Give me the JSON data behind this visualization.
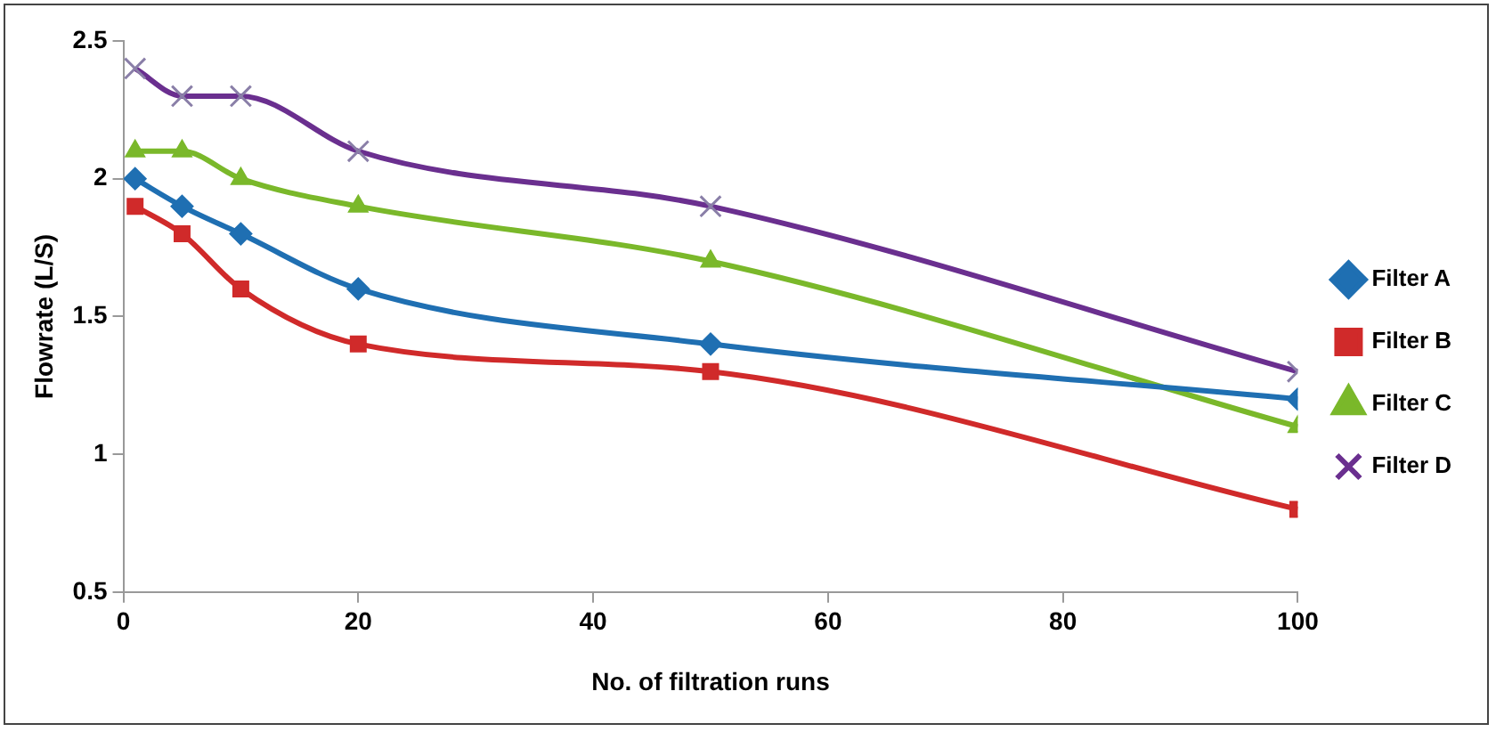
{
  "chart_data": {
    "type": "line",
    "xlabel": "No. of filtration runs",
    "ylabel": "Flowrate (L/S)",
    "x": [
      1,
      5,
      10,
      20,
      50,
      100
    ],
    "series": [
      {
        "name": "Filter A",
        "color": "#1f6fb2",
        "marker": "diamond",
        "values": [
          2.0,
          1.9,
          1.8,
          1.6,
          1.4,
          1.2
        ]
      },
      {
        "name": "Filter B",
        "color": "#d02a2a",
        "marker": "square",
        "values": [
          1.9,
          1.8,
          1.6,
          1.4,
          1.3,
          0.8
        ]
      },
      {
        "name": "Filter C",
        "color": "#7ab82a",
        "marker": "triangle",
        "values": [
          2.1,
          2.1,
          2.0,
          1.9,
          1.7,
          1.1
        ]
      },
      {
        "name": "Filter D",
        "color": "#6a2f8f",
        "marker": "cross",
        "values": [
          2.4,
          2.3,
          2.3,
          2.1,
          1.9,
          1.3
        ]
      }
    ],
    "xlim": [
      0,
      100
    ],
    "xticks": [
      0,
      20,
      40,
      60,
      80,
      100
    ],
    "ylim": [
      0.5,
      2.5
    ],
    "yticks": [
      0.5,
      1,
      1.5,
      2,
      2.5
    ],
    "grid": false,
    "legend": "right"
  }
}
